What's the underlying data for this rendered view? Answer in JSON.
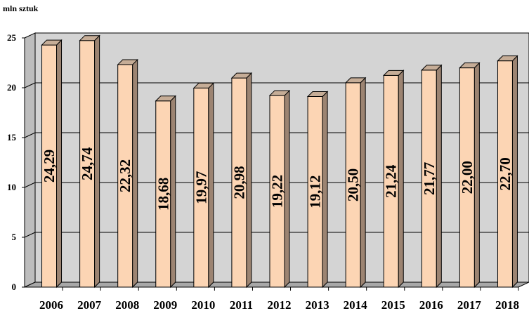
{
  "chart_data": {
    "type": "bar",
    "unit_label": "mln sztuk",
    "categories": [
      "2006",
      "2007",
      "2008",
      "2009",
      "2010",
      "2011",
      "2012",
      "2013",
      "2014",
      "2015",
      "2016",
      "2017",
      "2018"
    ],
    "values": [
      24.29,
      24.74,
      22.32,
      18.68,
      19.97,
      20.98,
      19.22,
      19.12,
      20.5,
      21.24,
      21.77,
      22.0,
      22.7
    ],
    "data_labels": [
      "24,29",
      "24,74",
      "22,32",
      "18,68",
      "19,97",
      "20,98",
      "19,22",
      "19,12",
      "20,50",
      "21,24",
      "21,77",
      "22,00",
      "22,70"
    ],
    "y_ticks": [
      "0",
      "5",
      "10",
      "15",
      "20",
      "25"
    ],
    "ylim": [
      0,
      25
    ],
    "grid": true,
    "bar_style": "3d",
    "colors": {
      "plot_background": "#d4d4d4",
      "bar_front": "#fcd5b4",
      "bar_side": "#9c8472",
      "bar_top": "#c6ad97",
      "grid": "#000000"
    }
  }
}
